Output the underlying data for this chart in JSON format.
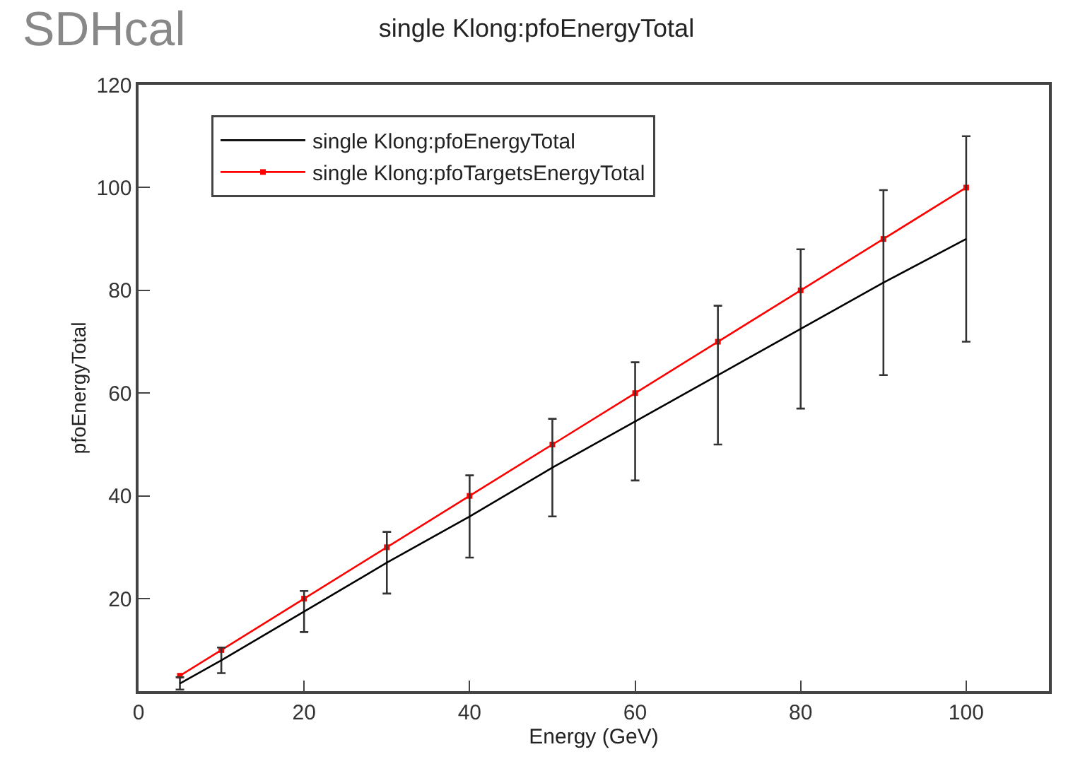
{
  "chart_data": {
    "type": "line",
    "title": "single Klong:pfoEnergyTotal",
    "xlabel": "Energy (GeV)",
    "ylabel": "pfoEnergyTotal",
    "annotations": [
      "SDHcal"
    ],
    "x": [
      5,
      10,
      20,
      30,
      40,
      50,
      60,
      70,
      80,
      90,
      100
    ],
    "series": [
      {
        "name": "single Klong:pfoEnergyTotal",
        "color": "#000000",
        "marker": "none",
        "values": [
          3.5,
          8,
          17.5,
          27,
          36,
          45.5,
          54.5,
          63.5,
          72.5,
          81.5,
          90
        ],
        "errors": [
          1.2,
          2.5,
          4,
          6,
          8,
          9.5,
          11.5,
          13.5,
          15.5,
          18,
          20
        ]
      },
      {
        "name": "single Klong:pfoTargetsEnergyTotal",
        "color": "#ff0000",
        "marker": "square",
        "values": [
          5,
          10,
          20,
          30,
          40,
          50,
          60,
          70,
          80,
          90,
          100
        ]
      }
    ],
    "xlim": [
      0,
      110
    ],
    "xticks": [
      0,
      20,
      40,
      60,
      80,
      100
    ],
    "ylim": [
      2,
      120
    ],
    "yticks": [
      20,
      40,
      60,
      80,
      100,
      120
    ],
    "legend": "top left"
  }
}
